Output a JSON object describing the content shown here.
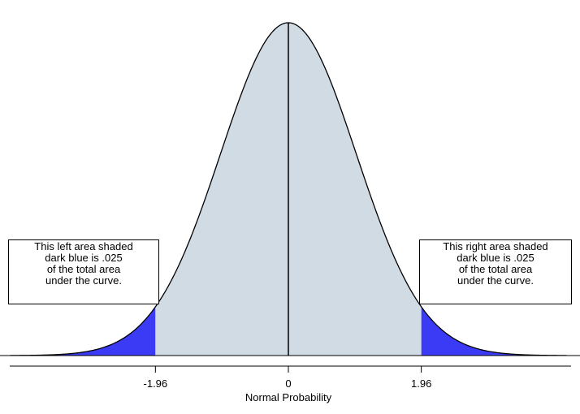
{
  "chart_data": {
    "type": "area",
    "distribution": "standard normal",
    "xlabel": "Normal Probability",
    "xlim": [
      -4.1,
      4.1
    ],
    "ticks": [
      {
        "value": -1.96,
        "label": "-1.96"
      },
      {
        "value": 0,
        "label": "0"
      },
      {
        "value": 1.96,
        "label": "1.96"
      }
    ],
    "center_line": 0,
    "shaded_regions": [
      {
        "name": "left",
        "from": -4.1,
        "to": -1.96,
        "area": 0.025,
        "color": "#3b3bf5"
      },
      {
        "name": "middle",
        "from": -1.96,
        "to": 1.96,
        "area": 0.95,
        "color": "#d0dbe4"
      },
      {
        "name": "right",
        "from": 1.96,
        "to": 4.1,
        "area": 0.025,
        "color": "#3b3bf5"
      }
    ],
    "annotations": {
      "left": [
        "This left area shaded",
        "dark blue is .025",
        "of the total area",
        "under the curve."
      ],
      "right": [
        "This right area shaded",
        "dark blue is .025",
        "of the total area",
        "under the curve."
      ]
    },
    "grid": false
  }
}
